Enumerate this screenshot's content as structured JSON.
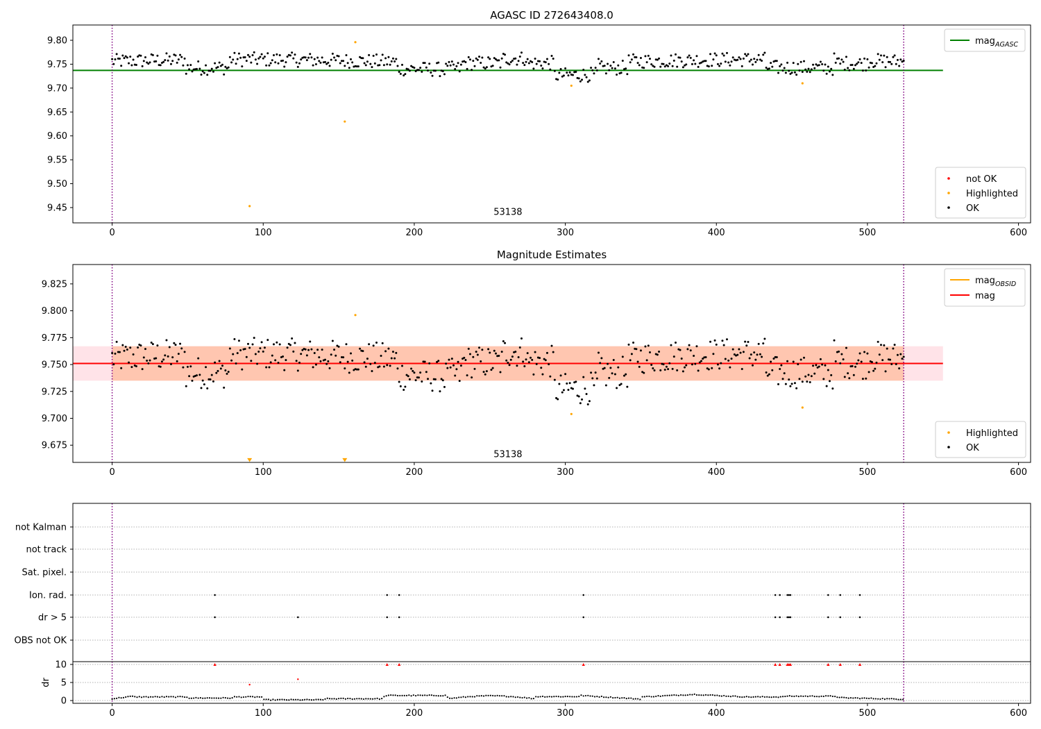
{
  "figure": {
    "title_top": "AGASC ID 272643408.0",
    "title_mid": "Magnitude Estimates",
    "obsid_label": "53138"
  },
  "colors": {
    "ok": "#000000",
    "highlighted": "#ffa500",
    "not_ok": "#ff0000",
    "agasc_line": "#008000",
    "obsid_line": "#ffa500",
    "mag_line": "#ff0000",
    "obsid_band": "#ffb38a",
    "mag_band": "#ffc0cb",
    "vline": "#800080"
  },
  "chart_data": [
    {
      "id": "top",
      "type": "scatter",
      "title": "AGASC ID 272643408.0",
      "xlim": [
        -26,
        608
      ],
      "ylim": [
        9.418,
        9.832
      ],
      "xticks": [
        0,
        100,
        200,
        300,
        400,
        500,
        600
      ],
      "yticks": [
        9.45,
        9.5,
        9.55,
        9.6,
        9.65,
        9.7,
        9.75,
        9.8
      ],
      "ytick_labels": [
        "9.45",
        "9.50",
        "9.55",
        "9.60",
        "9.65",
        "9.70",
        "9.75",
        "9.80"
      ],
      "hlines": [
        {
          "name": "mag_AGASC",
          "y": 9.737,
          "x": [
            -26,
            550
          ],
          "color": "#008000"
        }
      ],
      "vlines": [
        0,
        524
      ],
      "obsid_text": {
        "x": 262,
        "y": 9.435,
        "label": "53138"
      },
      "legend_lines": [
        {
          "label": "mag",
          "sub": "AGASC",
          "color": "#008000"
        }
      ],
      "legend_points": [
        {
          "label": "not OK",
          "color": "#ff0000"
        },
        {
          "label": "Highlighted",
          "color": "#ffa500"
        },
        {
          "label": "OK",
          "color": "#000000"
        }
      ],
      "series": [
        {
          "name": "Highlighted",
          "color": "#ffa500",
          "points": [
            [
              91,
              9.453
            ],
            [
              154,
              9.63
            ],
            [
              161,
              9.796
            ],
            [
              304,
              9.705
            ],
            [
              457,
              9.71
            ]
          ]
        },
        {
          "name": "OK",
          "color": "#000000",
          "points": "ok_curve"
        }
      ],
      "ok_curve_range": [
        0,
        524
      ]
    },
    {
      "id": "mid",
      "type": "scatter",
      "title": "Magnitude Estimates",
      "xlim": [
        -26,
        608
      ],
      "ylim": [
        9.659,
        9.843
      ],
      "xticks": [
        0,
        100,
        200,
        300,
        400,
        500,
        600
      ],
      "yticks": [
        9.675,
        9.7,
        9.725,
        9.75,
        9.775,
        9.8,
        9.825
      ],
      "ytick_labels": [
        "9.675",
        "9.700",
        "9.725",
        "9.750",
        "9.775",
        "9.800",
        "9.825"
      ],
      "bands": [
        {
          "name": "mag range",
          "y": [
            9.735,
            9.767
          ],
          "x": [
            -26,
            550
          ],
          "color": "#ffc0cb"
        },
        {
          "name": "mag_OBSID range",
          "y": [
            9.735,
            9.767
          ],
          "x": [
            0,
            524
          ],
          "color": "#ffb38a"
        }
      ],
      "hlines": [
        {
          "name": "mag_OBSID",
          "y": 9.751,
          "x": [
            0,
            524
          ],
          "color": "#ffa500"
        },
        {
          "name": "mag",
          "y": 9.751,
          "x": [
            -26,
            550
          ],
          "color": "#ff0000"
        }
      ],
      "vlines": [
        0,
        524
      ],
      "obsid_text": {
        "x": 262,
        "y": 9.664,
        "label": "53138"
      },
      "legend_lines": [
        {
          "label": "mag",
          "sub": "OBSID",
          "color": "#ffa500"
        },
        {
          "label": "mag",
          "sub": "",
          "color": "#ff0000"
        }
      ],
      "legend_points": [
        {
          "label": "Highlighted",
          "color": "#ffa500"
        },
        {
          "label": "OK",
          "color": "#000000"
        }
      ],
      "series": [
        {
          "name": "Highlighted",
          "color": "#ffa500",
          "points": [
            [
              161,
              9.796
            ],
            [
              304,
              9.704
            ],
            [
              457,
              9.71
            ]
          ]
        },
        {
          "name": "Highlighted (off-scale)",
          "color": "#ffa500",
          "marker": "triangle-down",
          "points": [
            [
              91,
              9.661
            ],
            [
              154,
              9.661
            ]
          ]
        },
        {
          "name": "OK",
          "color": "#000000",
          "points": "ok_curve"
        }
      ],
      "ok_curve_range": [
        0,
        524
      ]
    },
    {
      "id": "flags",
      "type": "scatter",
      "xlim": [
        -26,
        608
      ],
      "categories": [
        "not Kalman",
        "not track",
        "Sat. pixel.",
        "Ion. rad.",
        "dr > 5",
        "OBS not OK"
      ],
      "vlines": [
        0,
        524
      ],
      "series": [
        {
          "name": "Ion. rad.",
          "color": "#000000",
          "x": [
            68,
            182,
            190,
            312,
            439,
            442,
            447,
            448,
            449,
            474,
            482,
            495
          ]
        },
        {
          "name": "dr > 5",
          "color": "#000000",
          "x": [
            68,
            123,
            182,
            190,
            312,
            439,
            442,
            447,
            448,
            449,
            474,
            482,
            495
          ]
        }
      ]
    },
    {
      "id": "dr",
      "type": "scatter",
      "ylabel": "dr",
      "xlim": [
        -26,
        608
      ],
      "ylim": [
        -0.5,
        10.5
      ],
      "xticks": [
        0,
        100,
        200,
        300,
        400,
        500,
        600
      ],
      "yticks": [
        0,
        5,
        10
      ],
      "vlines": [
        0,
        524
      ],
      "series": [
        {
          "name": "not OK",
          "color": "#ff0000",
          "marker": "triangle-up",
          "points": [
            [
              68,
              10
            ],
            [
              182,
              10
            ],
            [
              190,
              10
            ],
            [
              312,
              10
            ],
            [
              439,
              10
            ],
            [
              442,
              10
            ],
            [
              447,
              10
            ],
            [
              448,
              10
            ],
            [
              449,
              10
            ],
            [
              474,
              10
            ],
            [
              482,
              10
            ],
            [
              495,
              10
            ]
          ]
        },
        {
          "name": "not OK",
          "color": "#ff0000",
          "points": [
            [
              91,
              4.4
            ],
            [
              123,
              5.9
            ]
          ]
        },
        {
          "name": "OK",
          "color": "#000000",
          "points": "dr_curve"
        }
      ],
      "dr_curve_range": [
        0,
        524
      ]
    }
  ]
}
